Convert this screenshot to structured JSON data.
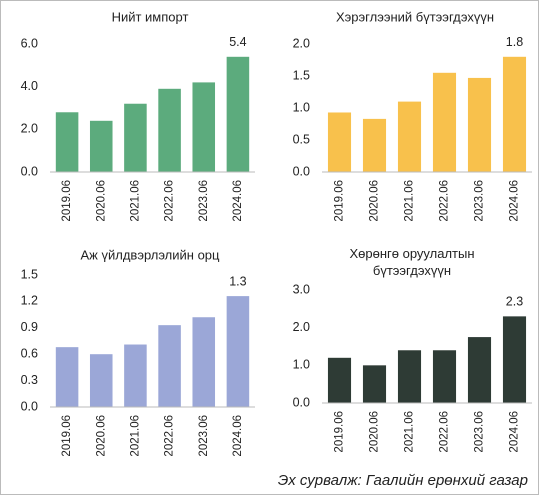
{
  "chart_data": [
    {
      "type": "bar",
      "title": "Нийт импорт",
      "categories": [
        "2019.06",
        "2020.06",
        "2021.06",
        "2022.06",
        "2023.06",
        "2024.06"
      ],
      "values": [
        2.8,
        2.4,
        3.2,
        3.9,
        4.2,
        5.4
      ],
      "value_labels": [
        null,
        null,
        null,
        null,
        null,
        "5.4"
      ],
      "color": "#5cab7d",
      "ylim": [
        0,
        6
      ],
      "yticks": [
        {
          "value": 0,
          "label": "0.0"
        },
        {
          "value": 2,
          "label": "2.0"
        },
        {
          "value": 4,
          "label": "4.0"
        },
        {
          "value": 6,
          "label": "6.0"
        }
      ]
    },
    {
      "type": "bar",
      "title": "Хэрэглээний бүтээгдэхүүн",
      "categories": [
        "2019.06",
        "2020.06",
        "2021.06",
        "2022.06",
        "2023.06",
        "2024.06"
      ],
      "values": [
        0.93,
        0.83,
        1.1,
        1.55,
        1.47,
        1.8
      ],
      "value_labels": [
        null,
        null,
        null,
        null,
        null,
        "1.8"
      ],
      "color": "#f8c14c",
      "ylim": [
        0,
        2
      ],
      "yticks": [
        {
          "value": 0,
          "label": "0.0"
        },
        0.5,
        {
          "value": 1,
          "label": "1.0"
        },
        1.5,
        {
          "value": 2,
          "label": "2.0"
        }
      ]
    },
    {
      "type": "bar",
      "title": "Аж үйлдвэрлэлийн орц",
      "categories": [
        "2019.06",
        "2020.06",
        "2021.06",
        "2022.06",
        "2023.06",
        "2024.06"
      ],
      "values": [
        0.68,
        0.6,
        0.71,
        0.93,
        1.02,
        1.26
      ],
      "value_labels": [
        null,
        null,
        null,
        null,
        null,
        "1.3"
      ],
      "color": "#9ba7d7",
      "ylim": [
        0,
        1.5
      ],
      "yticks": [
        {
          "value": 0,
          "label": "0.0"
        },
        0.3,
        0.6,
        0.9,
        1.2,
        1.5
      ]
    },
    {
      "type": "bar",
      "title": "Хөрөнгө оруулалтын бүтээгдэхүүн",
      "categories": [
        "2019.06",
        "2020.06",
        "2021.06",
        "2022.06",
        "2023.06",
        "2024.06"
      ],
      "values": [
        1.2,
        1.0,
        1.4,
        1.4,
        1.75,
        2.3
      ],
      "value_labels": [
        null,
        null,
        null,
        null,
        null,
        "2.3"
      ],
      "color": "#2e3b35",
      "ylim": [
        0,
        3
      ],
      "yticks": [
        {
          "value": 0,
          "label": "0.0"
        },
        {
          "value": 1,
          "label": "1.0"
        },
        {
          "value": 2,
          "label": "2.0"
        },
        {
          "value": 3,
          "label": "3.0"
        }
      ]
    }
  ],
  "source": "Эх сурвалж:  Гаалийн ерөнхий газар"
}
